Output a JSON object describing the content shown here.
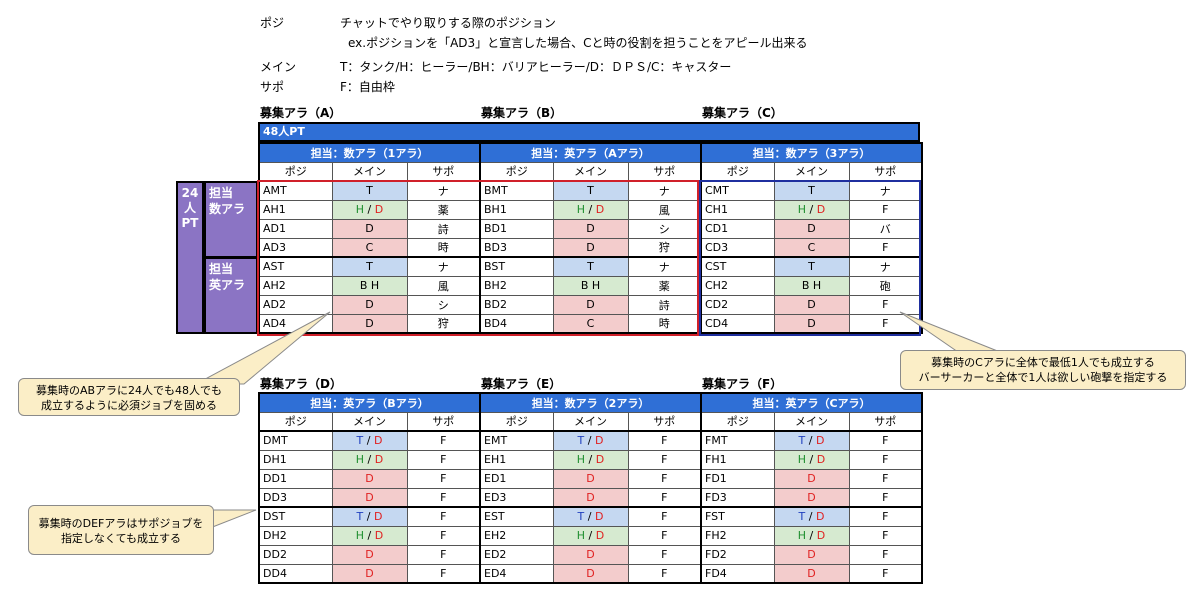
{
  "legend": {
    "rows": [
      {
        "key": "ポジ",
        "value": "チャットでやり取りする際のポジション"
      },
      {
        "key": "",
        "value": "ex.ポジションを「AD3」と宣言した場合、Cと時の役割を担うことをアピール出来る"
      },
      {
        "key": "メイン",
        "value": "T：タンク/H：ヒーラー/BH：バリアヒーラー/D：ＤＰＳ/C：キャスター"
      },
      {
        "key": "サポ",
        "value": "F：自由枠"
      }
    ]
  },
  "pt48_label": "48人PT",
  "pt24": {
    "label": "24人PT",
    "label_lines": [
      "24",
      "人",
      "PT"
    ],
    "sub1": "担当数アラ",
    "sub1_lines": [
      "担当",
      "数アラ"
    ],
    "sub2": "担当英アラ",
    "sub2_lines": [
      "担当",
      "英アラ"
    ]
  },
  "columns": {
    "pos": "ポジ",
    "main": "メイン",
    "sub": "サポ"
  },
  "groups": [
    {
      "title": "募集アラ（A）",
      "header": "担当：数アラ（1アラ）",
      "rows": [
        {
          "pos": "AMT",
          "main": "T",
          "mc": "t",
          "sub": "ナ"
        },
        {
          "pos": "AH1",
          "main": "H / D",
          "mc": "hd",
          "sub": "薬"
        },
        {
          "pos": "AD1",
          "main": "D",
          "mc": "d",
          "sub": "詩"
        },
        {
          "pos": "AD3",
          "main": "C",
          "mc": "c",
          "sub": "時"
        },
        {
          "pos": "AST",
          "main": "T",
          "mc": "t",
          "sub": "ナ"
        },
        {
          "pos": "AH2",
          "main": "B H",
          "mc": "b",
          "sub": "風"
        },
        {
          "pos": "AD2",
          "main": "D",
          "mc": "d",
          "sub": "シ"
        },
        {
          "pos": "AD4",
          "main": "D",
          "mc": "d",
          "sub": "狩"
        }
      ]
    },
    {
      "title": "募集アラ（B）",
      "header": "担当：英アラ（Aアラ）",
      "rows": [
        {
          "pos": "BMT",
          "main": "T",
          "mc": "t",
          "sub": "ナ"
        },
        {
          "pos": "BH1",
          "main": "H / D",
          "mc": "hd",
          "sub": "風"
        },
        {
          "pos": "BD1",
          "main": "D",
          "mc": "d",
          "sub": "シ"
        },
        {
          "pos": "BD3",
          "main": "D",
          "mc": "d",
          "sub": "狩"
        },
        {
          "pos": "BST",
          "main": "T",
          "mc": "t",
          "sub": "ナ"
        },
        {
          "pos": "BH2",
          "main": "B H",
          "mc": "b",
          "sub": "薬"
        },
        {
          "pos": "BD2",
          "main": "D",
          "mc": "d",
          "sub": "詩"
        },
        {
          "pos": "BD4",
          "main": "C",
          "mc": "c",
          "sub": "時"
        }
      ]
    },
    {
      "title": "募集アラ（C）",
      "header": "担当：数アラ（3アラ）",
      "rows": [
        {
          "pos": "CMT",
          "main": "T",
          "mc": "t",
          "sub": "ナ"
        },
        {
          "pos": "CH1",
          "main": "H / D",
          "mc": "hd",
          "sub": "F"
        },
        {
          "pos": "CD1",
          "main": "D",
          "mc": "d",
          "sub": "バ"
        },
        {
          "pos": "CD3",
          "main": "C",
          "mc": "c",
          "sub": "F"
        },
        {
          "pos": "CST",
          "main": "T",
          "mc": "t",
          "sub": "ナ"
        },
        {
          "pos": "CH2",
          "main": "B H",
          "mc": "b",
          "sub": "砲"
        },
        {
          "pos": "CD2",
          "main": "D",
          "mc": "d",
          "sub": "F"
        },
        {
          "pos": "CD4",
          "main": "D",
          "mc": "d",
          "sub": "F"
        }
      ]
    },
    {
      "title": "募集アラ（D）",
      "header": "担当：英アラ（Bアラ）",
      "rows": [
        {
          "pos": "DMT",
          "main": "T / D",
          "mc": "td",
          "sub": "F"
        },
        {
          "pos": "DH1",
          "main": "H / D",
          "mc": "hd",
          "sub": "F"
        },
        {
          "pos": "DD1",
          "main": "D",
          "mc": "dr",
          "sub": "F"
        },
        {
          "pos": "DD3",
          "main": "D",
          "mc": "dr",
          "sub": "F"
        },
        {
          "pos": "DST",
          "main": "T / D",
          "mc": "td",
          "sub": "F"
        },
        {
          "pos": "DH2",
          "main": "H / D",
          "mc": "hd",
          "sub": "F"
        },
        {
          "pos": "DD2",
          "main": "D",
          "mc": "dr",
          "sub": "F"
        },
        {
          "pos": "DD4",
          "main": "D",
          "mc": "dr",
          "sub": "F"
        }
      ]
    },
    {
      "title": "募集アラ（E）",
      "header": "担当：数アラ（2アラ）",
      "rows": [
        {
          "pos": "EMT",
          "main": "T / D",
          "mc": "td",
          "sub": "F"
        },
        {
          "pos": "EH1",
          "main": "H / D",
          "mc": "hd",
          "sub": "F"
        },
        {
          "pos": "ED1",
          "main": "D",
          "mc": "dr",
          "sub": "F"
        },
        {
          "pos": "ED3",
          "main": "D",
          "mc": "dr",
          "sub": "F"
        },
        {
          "pos": "EST",
          "main": "T / D",
          "mc": "td",
          "sub": "F"
        },
        {
          "pos": "EH2",
          "main": "H / D",
          "mc": "hd",
          "sub": "F"
        },
        {
          "pos": "ED2",
          "main": "D",
          "mc": "dr",
          "sub": "F"
        },
        {
          "pos": "ED4",
          "main": "D",
          "mc": "dr",
          "sub": "F"
        }
      ]
    },
    {
      "title": "募集アラ（F）",
      "header": "担当：英アラ（Cアラ）",
      "rows": [
        {
          "pos": "FMT",
          "main": "T / D",
          "mc": "td",
          "sub": "F"
        },
        {
          "pos": "FH1",
          "main": "H / D",
          "mc": "hd",
          "sub": "F"
        },
        {
          "pos": "FD1",
          "main": "D",
          "mc": "dr",
          "sub": "F"
        },
        {
          "pos": "FD3",
          "main": "D",
          "mc": "dr",
          "sub": "F"
        },
        {
          "pos": "FST",
          "main": "T / D",
          "mc": "td",
          "sub": "F"
        },
        {
          "pos": "FH2",
          "main": "H / D",
          "mc": "hd",
          "sub": "F"
        },
        {
          "pos": "FD2",
          "main": "D",
          "mc": "dr",
          "sub": "F"
        },
        {
          "pos": "FD4",
          "main": "D",
          "mc": "dr",
          "sub": "F"
        }
      ]
    }
  ],
  "callouts": {
    "ab": [
      "募集時のABアラに24人でも48人でも",
      "成立するように必須ジョブを固める"
    ],
    "c": [
      "募集時のCアラに全体で最低1人でも成立する",
      "バーサーカーと全体で1人は欲しい砲撃を指定する"
    ],
    "def": [
      "募集時のDEFアラはサポジョブを",
      "指定しなくても成立する"
    ]
  },
  "colors": {
    "header_blue": "#2f6fd6",
    "pt24_purple": "#8b74c4",
    "outline_red": "#d0202a",
    "outline_blue": "#1f2f9f"
  }
}
